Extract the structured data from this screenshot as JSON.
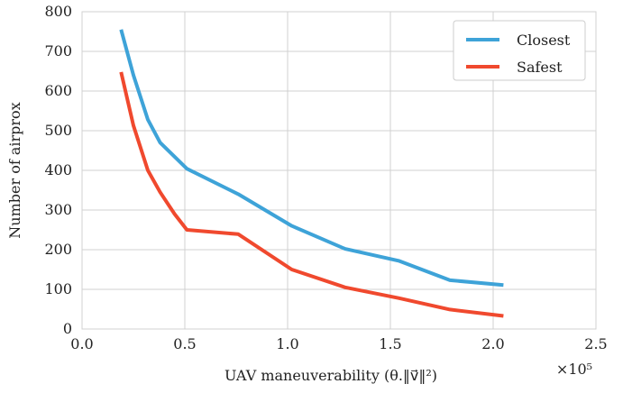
{
  "chart_data": {
    "type": "line",
    "xlabel": "UAV maneuverability (θ.‖v⃗‖²)",
    "ylabel": "Number of airprox",
    "x_multiplier_label": "×10⁵",
    "xlim": [
      0.0,
      2.5
    ],
    "ylim": [
      0,
      800
    ],
    "xticks": [
      "0.0",
      "0.5",
      "1.0",
      "1.5",
      "2.0",
      "2.5"
    ],
    "yticks": [
      "0",
      "100",
      "200",
      "300",
      "400",
      "500",
      "600",
      "700",
      "800"
    ],
    "grid": true,
    "legend_position": "top-right",
    "series": [
      {
        "name": "Closest",
        "color": "#3ea3d8",
        "x": [
          0.19,
          0.25,
          0.32,
          0.38,
          0.51,
          0.76,
          1.02,
          1.28,
          1.54,
          1.79,
          2.05
        ],
        "y": [
          755,
          640,
          528,
          470,
          404,
          340,
          260,
          202,
          172,
          123,
          111
        ]
      },
      {
        "name": "Safest",
        "color": "#f0492e",
        "x": [
          0.19,
          0.25,
          0.32,
          0.38,
          0.45,
          0.51,
          0.76,
          1.02,
          1.28,
          1.54,
          1.79,
          2.05
        ],
        "y": [
          648,
          513,
          400,
          345,
          290,
          250,
          239,
          150,
          105,
          78,
          49,
          33
        ]
      }
    ]
  }
}
